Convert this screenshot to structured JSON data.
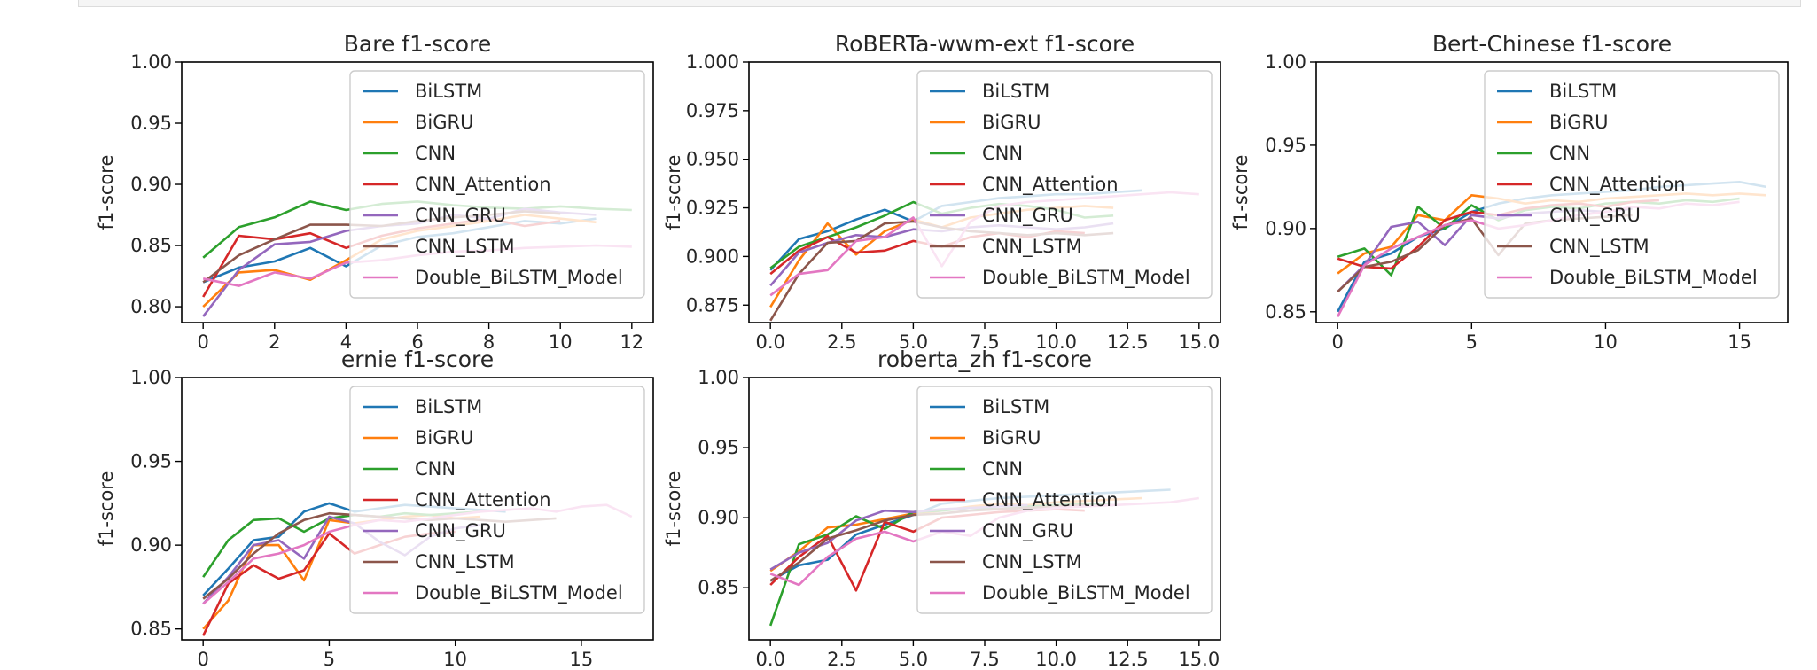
{
  "legend_entries": [
    "BiLSTM",
    "BiGRU",
    "CNN",
    "CNN_Attention",
    "CNN_GRU",
    "CNN_LSTM",
    "Double_BiLSTM_Model"
  ],
  "series_colors": [
    "#1f77b4",
    "#ff7f0e",
    "#2ca02c",
    "#d62728",
    "#9467bd",
    "#8c564b",
    "#e377c2"
  ],
  "chart_data": [
    {
      "type": "line",
      "title": "Bare f1-score",
      "ylabel": "f1-score",
      "xlim": [
        -0.6,
        12.6
      ],
      "ylim": [
        0.787,
        1.0
      ],
      "xticks": [
        0,
        2,
        4,
        6,
        8,
        10,
        12
      ],
      "yticks": [
        0.8,
        0.85,
        0.9,
        0.95,
        1.0
      ],
      "ytick_labels": [
        "0.80",
        "0.85",
        "0.90",
        "0.95",
        "1.00"
      ],
      "legend_position": "upper right",
      "series": [
        {
          "name": "BiLSTM",
          "values": [
            0.82,
            0.832,
            0.837,
            0.848,
            0.833,
            0.85,
            0.857,
            0.86,
            0.865,
            0.87,
            0.868,
            0.872
          ]
        },
        {
          "name": "BiGRU",
          "values": [
            0.8,
            0.828,
            0.83,
            0.822,
            0.838,
            0.855,
            0.862,
            0.866,
            0.87,
            0.875,
            0.872,
            0.869
          ]
        },
        {
          "name": "CNN",
          "values": [
            0.84,
            0.865,
            0.873,
            0.886,
            0.879,
            0.884,
            0.886,
            0.883,
            0.881,
            0.88,
            0.882,
            0.88,
            0.879
          ]
        },
        {
          "name": "CNN_Attention",
          "values": [
            0.808,
            0.858,
            0.855,
            0.86,
            0.848,
            0.858,
            0.864,
            0.868,
            0.872,
            0.866,
            0.87
          ]
        },
        {
          "name": "CNN_GRU",
          "values": [
            0.792,
            0.83,
            0.851,
            0.853,
            0.862,
            0.866,
            0.868,
            0.875,
            0.872,
            0.88,
            0.877,
            0.875
          ]
        },
        {
          "name": "CNN_LSTM",
          "values": [
            0.82,
            0.842,
            0.855,
            0.867,
            0.867,
            0.866,
            0.87,
            0.873,
            0.875,
            0.878,
            0.876
          ]
        },
        {
          "name": "Double_BiLSTM_Model",
          "values": [
            0.823,
            0.817,
            0.828,
            0.823,
            0.836,
            0.838,
            0.842,
            0.845,
            0.846,
            0.848,
            0.849,
            0.85,
            0.849
          ]
        }
      ]
    },
    {
      "type": "line",
      "title": "RoBERTa-wwm-ext f1-score",
      "ylabel": "f1-score",
      "xlim": [
        -0.75,
        15.75
      ],
      "ylim": [
        0.866,
        1.0
      ],
      "xticks": [
        0,
        2.5,
        5,
        7.5,
        10,
        12.5,
        15
      ],
      "xtick_labels": [
        "0.0",
        "2.5",
        "5.0",
        "7.5",
        "10.0",
        "12.5",
        "15.0"
      ],
      "yticks": [
        0.875,
        0.9,
        0.925,
        0.95,
        0.975,
        1.0
      ],
      "ytick_labels": [
        "0.875",
        "0.900",
        "0.925",
        "0.950",
        "0.975",
        "1.000"
      ],
      "legend_position": "upper right",
      "series": [
        {
          "name": "BiLSTM",
          "values": [
            0.893,
            0.909,
            0.913,
            0.919,
            0.924,
            0.918,
            0.926,
            0.928,
            0.93,
            0.931,
            0.932,
            0.932,
            0.933,
            0.934
          ]
        },
        {
          "name": "BiGRU",
          "values": [
            0.874,
            0.898,
            0.917,
            0.901,
            0.913,
            0.919,
            0.915,
            0.92,
            0.922,
            0.924,
            0.925,
            0.926,
            0.925
          ]
        },
        {
          "name": "CNN",
          "values": [
            0.894,
            0.905,
            0.91,
            0.915,
            0.921,
            0.928,
            0.922,
            0.925,
            0.927,
            0.926,
            0.924,
            0.92,
            0.921
          ]
        },
        {
          "name": "CNN_Attention",
          "values": [
            0.891,
            0.903,
            0.91,
            0.902,
            0.903,
            0.908,
            0.905,
            0.91,
            0.912,
            0.91,
            0.913,
            0.912
          ]
        },
        {
          "name": "CNN_GRU",
          "values": [
            0.885,
            0.902,
            0.907,
            0.911,
            0.91,
            0.914,
            0.913,
            0.915,
            0.916,
            0.915,
            0.914,
            0.915,
            0.917
          ]
        },
        {
          "name": "CNN_LSTM",
          "values": [
            0.867,
            0.891,
            0.907,
            0.908,
            0.917,
            0.918,
            0.915,
            0.913,
            0.912,
            0.911,
            0.912,
            0.911,
            0.912
          ]
        },
        {
          "name": "Double_BiLSTM_Model",
          "values": [
            0.88,
            0.891,
            0.893,
            0.908,
            0.91,
            0.92,
            0.895,
            0.918,
            0.926,
            0.928,
            0.929,
            0.93,
            0.931,
            0.932,
            0.933,
            0.932
          ]
        }
      ]
    },
    {
      "type": "line",
      "title": "Bert-Chinese f1-score",
      "ylabel": "f1-score",
      "xlim": [
        -0.8,
        16.8
      ],
      "ylim": [
        0.8435,
        1.0
      ],
      "xticks": [
        0,
        5,
        10,
        15
      ],
      "yticks": [
        0.85,
        0.9,
        0.95,
        1.0
      ],
      "ytick_labels": [
        "0.85",
        "0.90",
        "0.95",
        "1.00"
      ],
      "legend_position": "upper right",
      "series": [
        {
          "name": "BiLSTM",
          "values": [
            0.85,
            0.88,
            0.885,
            0.895,
            0.9,
            0.91,
            0.915,
            0.918,
            0.92,
            0.921,
            0.922,
            0.923,
            0.925,
            0.926,
            0.927,
            0.928,
            0.925
          ]
        },
        {
          "name": "BiGRU",
          "values": [
            0.873,
            0.885,
            0.889,
            0.908,
            0.905,
            0.92,
            0.918,
            0.915,
            0.917,
            0.916,
            0.918,
            0.919,
            0.92,
            0.921,
            0.92,
            0.921,
            0.92
          ]
        },
        {
          "name": "CNN",
          "values": [
            0.883,
            0.888,
            0.872,
            0.913,
            0.9,
            0.914,
            0.905,
            0.911,
            0.913,
            0.912,
            0.915,
            0.916,
            0.915,
            0.917,
            0.916,
            0.918
          ]
        },
        {
          "name": "CNN_Attention",
          "values": [
            0.882,
            0.877,
            0.876,
            0.889,
            0.905,
            0.91,
            0.908,
            0.912,
            0.914,
            0.915,
            0.913,
            0.916,
            0.917
          ]
        },
        {
          "name": "CNN_GRU",
          "values": [
            0.862,
            0.878,
            0.901,
            0.904,
            0.89,
            0.908,
            0.906,
            0.909,
            0.91,
            0.911,
            0.91,
            0.912
          ]
        },
        {
          "name": "CNN_LSTM",
          "values": [
            0.862,
            0.877,
            0.88,
            0.887,
            0.902,
            0.906,
            0.884,
            0.903,
            0.905,
            0.906,
            0.907,
            0.908
          ]
        },
        {
          "name": "Double_BiLSTM_Model",
          "values": [
            0.847,
            0.878,
            0.888,
            0.895,
            0.902,
            0.905,
            0.9,
            0.902,
            0.905,
            0.908,
            0.91,
            0.913,
            0.912,
            0.915,
            0.914,
            0.916
          ]
        }
      ]
    },
    {
      "type": "line",
      "title": "ernie f1-score",
      "ylabel": "f1-score",
      "xlim": [
        -0.85,
        17.85
      ],
      "ylim": [
        0.8435,
        1.0
      ],
      "xticks": [
        0,
        5,
        10,
        15
      ],
      "yticks": [
        0.85,
        0.9,
        0.95,
        1.0
      ],
      "ytick_labels": [
        "0.85",
        "0.90",
        "0.95",
        "1.00"
      ],
      "legend_position": "upper right",
      "series": [
        {
          "name": "BiLSTM",
          "values": [
            0.87,
            0.886,
            0.903,
            0.905,
            0.92,
            0.925,
            0.92,
            0.922,
            0.924,
            0.923,
            0.922,
            0.921,
            0.92
          ]
        },
        {
          "name": "BiGRU",
          "values": [
            0.85,
            0.867,
            0.9,
            0.9,
            0.879,
            0.915,
            0.913,
            0.915,
            0.917,
            0.918,
            0.916,
            0.917
          ]
        },
        {
          "name": "CNN",
          "values": [
            0.881,
            0.903,
            0.915,
            0.916,
            0.908,
            0.916,
            0.918,
            0.917,
            0.919,
            0.918,
            0.919,
            0.92
          ]
        },
        {
          "name": "CNN_Attention",
          "values": [
            0.846,
            0.877,
            0.888,
            0.88,
            0.885,
            0.907,
            0.895,
            0.9,
            0.905,
            0.907,
            0.908
          ]
        },
        {
          "name": "CNN_GRU",
          "values": [
            0.865,
            0.881,
            0.9,
            0.903,
            0.892,
            0.917,
            0.913,
            0.902,
            0.894,
            0.905,
            0.91,
            0.912
          ]
        },
        {
          "name": "CNN_LSTM",
          "values": [
            0.868,
            0.88,
            0.895,
            0.907,
            0.915,
            0.919,
            0.918,
            0.917,
            0.916,
            0.915,
            0.916,
            0.915,
            0.914,
            0.915,
            0.916
          ]
        },
        {
          "name": "Double_BiLSTM_Model",
          "values": [
            0.865,
            0.878,
            0.892,
            0.895,
            0.9,
            0.908,
            0.912,
            0.915,
            0.914,
            0.916,
            0.918,
            0.92,
            0.921,
            0.922,
            0.92,
            0.923,
            0.924,
            0.917
          ]
        }
      ]
    },
    {
      "type": "line",
      "title": "roberta_zh f1-score",
      "ylabel": "f1-score",
      "xlim": [
        -0.75,
        15.75
      ],
      "ylim": [
        0.8128,
        1.0
      ],
      "xticks": [
        0,
        2.5,
        5,
        7.5,
        10,
        12.5,
        15
      ],
      "xtick_labels": [
        "0.0",
        "2.5",
        "5.0",
        "7.5",
        "10.0",
        "12.5",
        "15.0"
      ],
      "yticks": [
        0.85,
        0.9,
        0.95,
        1.0
      ],
      "ytick_labels": [
        "0.85",
        "0.90",
        "0.95",
        "1.00"
      ],
      "legend_position": "upper right",
      "series": [
        {
          "name": "BiLSTM",
          "values": [
            0.855,
            0.866,
            0.87,
            0.888,
            0.895,
            0.902,
            0.91,
            0.912,
            0.914,
            0.915,
            0.916,
            0.917,
            0.918,
            0.919,
            0.92
          ]
        },
        {
          "name": "BiGRU",
          "values": [
            0.862,
            0.876,
            0.893,
            0.895,
            0.899,
            0.903,
            0.905,
            0.908,
            0.91,
            0.909,
            0.911,
            0.912,
            0.913,
            0.914
          ]
        },
        {
          "name": "CNN",
          "values": [
            0.823,
            0.881,
            0.888,
            0.901,
            0.892,
            0.904,
            0.905,
            0.907,
            0.906,
            0.908,
            0.909,
            0.91,
            0.909
          ]
        },
        {
          "name": "CNN_Attention",
          "values": [
            0.852,
            0.872,
            0.887,
            0.848,
            0.897,
            0.89,
            0.9,
            0.902,
            0.904,
            0.905,
            0.906,
            0.905
          ]
        },
        {
          "name": "CNN_GRU",
          "values": [
            0.863,
            0.875,
            0.882,
            0.898,
            0.905,
            0.904,
            0.906,
            0.907,
            0.908,
            0.909
          ]
        },
        {
          "name": "CNN_LSTM",
          "values": [
            0.855,
            0.868,
            0.885,
            0.891,
            0.898,
            0.902,
            0.903,
            0.905,
            0.906,
            0.907,
            0.908,
            0.909
          ]
        },
        {
          "name": "Double_BiLSTM_Model",
          "values": [
            0.86,
            0.852,
            0.872,
            0.885,
            0.89,
            0.883,
            0.89,
            0.887,
            0.9,
            0.905,
            0.907,
            0.908,
            0.909,
            0.91,
            0.911,
            0.914
          ]
        }
      ]
    }
  ]
}
